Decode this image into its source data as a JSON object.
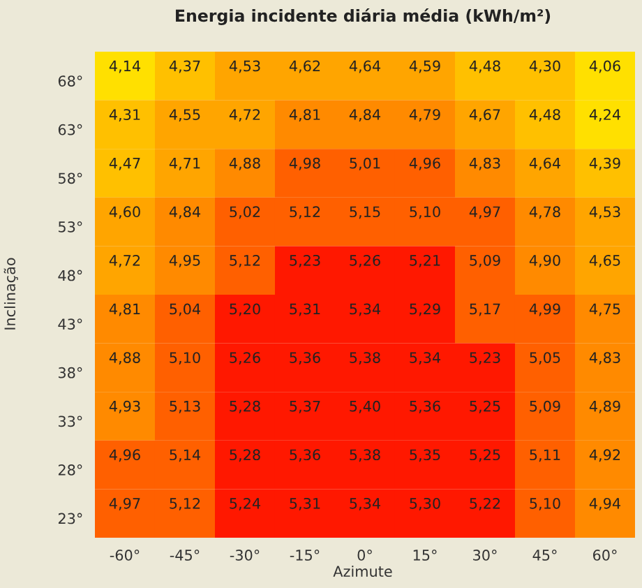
{
  "chart_data": {
    "type": "heatmap",
    "title": "Energia incidente diária média (kWh/m²)",
    "xlabel": "Azimute",
    "ylabel": "Inclinação",
    "categories": [
      "-60°",
      "-45°",
      "-30°",
      "-15°",
      "0°",
      "15°",
      "30°",
      "45°",
      "60°"
    ],
    "y_categories": [
      "68°",
      "63°",
      "58°",
      "53°",
      "48°",
      "43°",
      "38°",
      "33°",
      "28°",
      "23°"
    ],
    "cells": [
      [
        4.14,
        4.37,
        4.53,
        4.62,
        4.64,
        4.59,
        4.48,
        4.3,
        4.06
      ],
      [
        4.31,
        4.55,
        4.72,
        4.81,
        4.84,
        4.79,
        4.67,
        4.48,
        4.24
      ],
      [
        4.47,
        4.71,
        4.88,
        4.98,
        5.01,
        4.96,
        4.83,
        4.64,
        4.39
      ],
      [
        4.6,
        4.84,
        5.02,
        5.12,
        5.15,
        5.1,
        4.97,
        4.78,
        4.53
      ],
      [
        4.72,
        4.95,
        5.12,
        5.23,
        5.26,
        5.21,
        5.09,
        4.9,
        4.65
      ],
      [
        4.81,
        5.04,
        5.2,
        5.31,
        5.34,
        5.29,
        5.17,
        4.99,
        4.75
      ],
      [
        4.88,
        5.1,
        5.26,
        5.36,
        5.38,
        5.34,
        5.23,
        5.05,
        4.83
      ],
      [
        4.93,
        5.13,
        5.28,
        5.37,
        5.4,
        5.36,
        5.25,
        5.09,
        4.89
      ],
      [
        4.96,
        5.14,
        5.28,
        5.36,
        5.38,
        5.35,
        5.25,
        5.11,
        4.92
      ],
      [
        4.97,
        5.12,
        5.24,
        5.31,
        5.34,
        5.3,
        5.22,
        5.1,
        4.94
      ]
    ],
    "cell_labels": [
      [
        "4,14",
        "4,37",
        "4,53",
        "4,62",
        "4,64",
        "4,59",
        "4,48",
        "4,30",
        "4,06"
      ],
      [
        "4,31",
        "4,55",
        "4,72",
        "4,81",
        "4,84",
        "4,79",
        "4,67",
        "4,48",
        "4,24"
      ],
      [
        "4,47",
        "4,71",
        "4,88",
        "4,98",
        "5,01",
        "4,96",
        "4,83",
        "4,64",
        "4,39"
      ],
      [
        "4,60",
        "4,84",
        "5,02",
        "5,12",
        "5,15",
        "5,10",
        "4,97",
        "4,78",
        "4,53"
      ],
      [
        "4,72",
        "4,95",
        "5,12",
        "5,23",
        "5,26",
        "5,21",
        "5,09",
        "4,90",
        "4,65"
      ],
      [
        "4,81",
        "5,04",
        "5,20",
        "5,31",
        "5,34",
        "5,29",
        "5,17",
        "4,99",
        "4,75"
      ],
      [
        "4,88",
        "5,10",
        "5,26",
        "5,36",
        "5,38",
        "5,34",
        "5,23",
        "5,05",
        "4,83"
      ],
      [
        "4,93",
        "5,13",
        "5,28",
        "5,37",
        "5,40",
        "5,36",
        "5,25",
        "5,09",
        "4,89"
      ],
      [
        "4,96",
        "5,14",
        "5,28",
        "5,36",
        "5,38",
        "5,35",
        "5,25",
        "5,11",
        "4,92"
      ],
      [
        "4,97",
        "5,12",
        "5,24",
        "5,31",
        "5,34",
        "5,30",
        "5,22",
        "5,10",
        "4,94"
      ]
    ]
  }
}
